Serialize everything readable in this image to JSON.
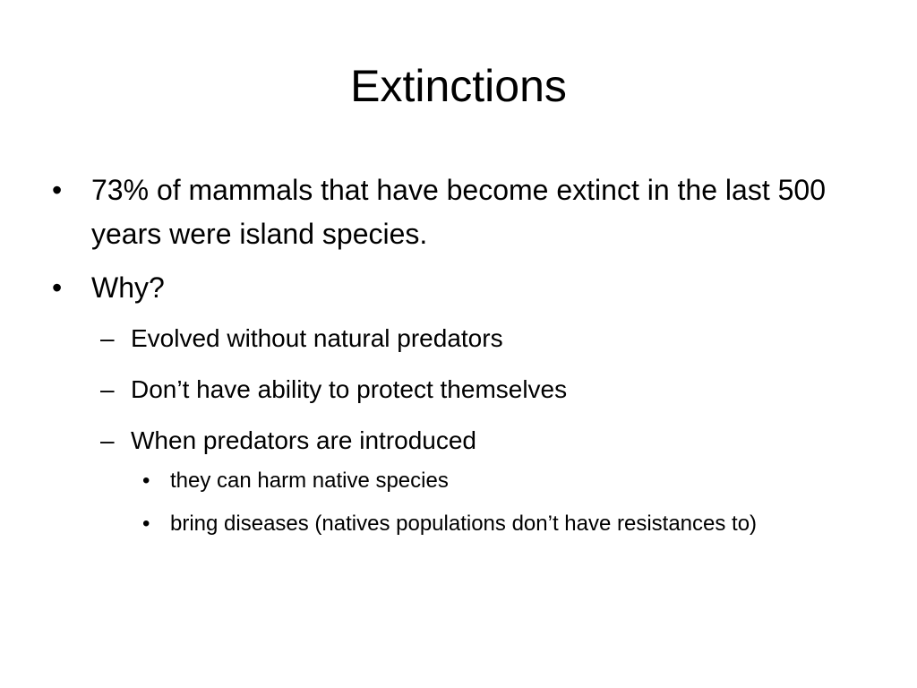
{
  "slide": {
    "title": "Extinctions",
    "bullets": [
      {
        "marker": "•",
        "text": "73% of mammals that have become extinct in the last 500 years were island species."
      },
      {
        "marker": "•",
        "text": "Why?",
        "sub": [
          {
            "marker": "–",
            "text": "Evolved without natural predators"
          },
          {
            "marker": "–",
            "text": "Don’t have ability to protect themselves"
          },
          {
            "marker": "–",
            "text": "When predators are introduced",
            "sub": [
              {
                "marker": "•",
                "text": "they can harm native species"
              },
              {
                "marker": "•",
                "text": "bring diseases (natives populations don’t have resistances to)"
              }
            ]
          }
        ]
      }
    ]
  }
}
